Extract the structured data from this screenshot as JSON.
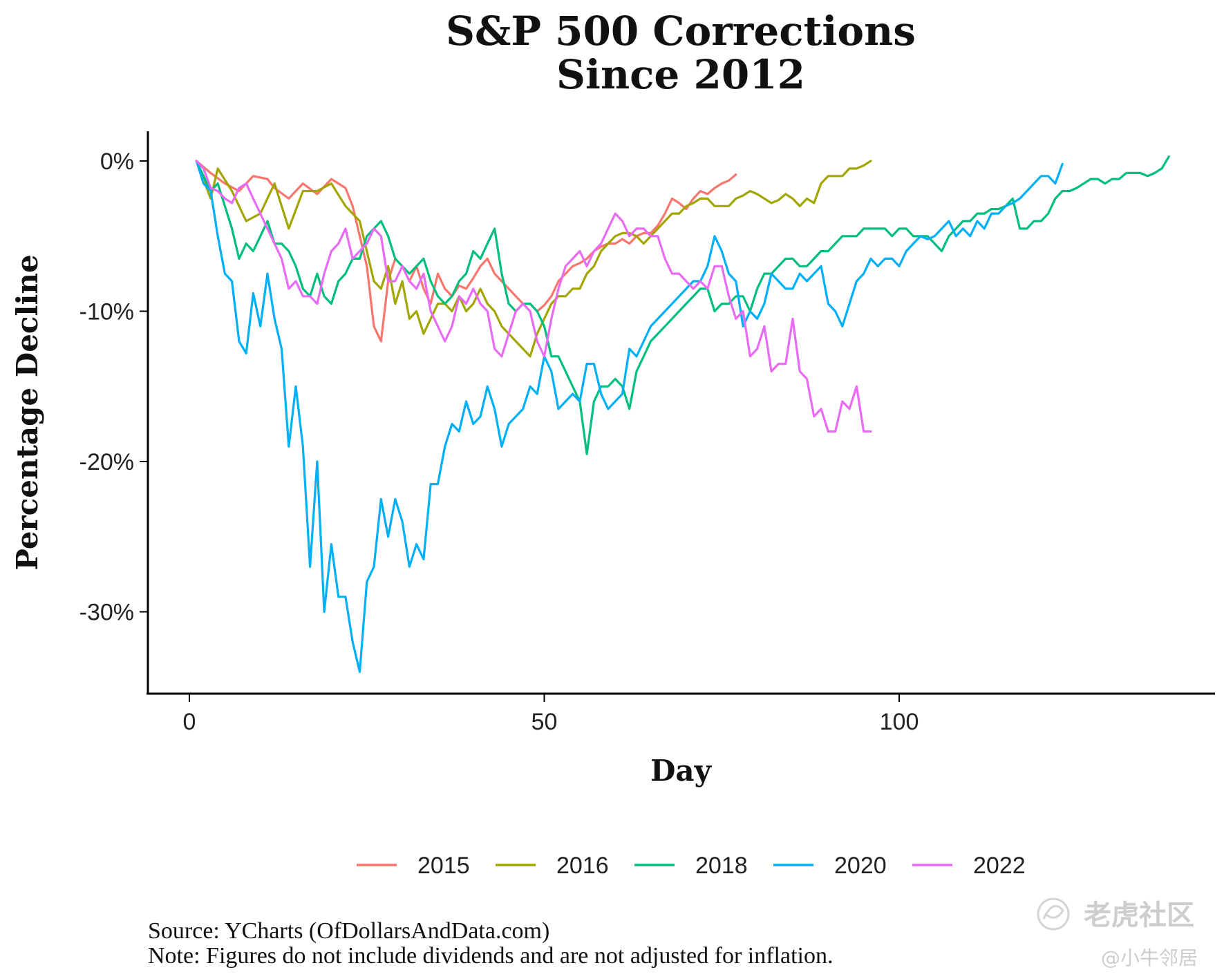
{
  "chart_data": {
    "type": "line",
    "title_lines": [
      "S&P 500 Corrections",
      "Since 2012"
    ],
    "xlabel": "Day",
    "ylabel": "Percentage Decline",
    "xlim": [
      -6,
      145
    ],
    "ylim": [
      -35,
      2
    ],
    "x_ticks": [
      0,
      50,
      100
    ],
    "x_tick_labels": [
      "0",
      "50",
      "100"
    ],
    "y_ticks": [
      0,
      -10,
      -20,
      -30
    ],
    "y_tick_labels": [
      "0%",
      "-10%",
      "-20%",
      "-30%"
    ],
    "legend_position": "bottom",
    "series": [
      {
        "name": "2015",
        "color": "#F8766D",
        "x": [
          1,
          3,
          5,
          7,
          9,
          11,
          12,
          14,
          16,
          18,
          20,
          22,
          23,
          24,
          25,
          26,
          27,
          28,
          29,
          30,
          31,
          32,
          33,
          34,
          35,
          36,
          37,
          38,
          39,
          40,
          41,
          42,
          43,
          44,
          45,
          46,
          47,
          48,
          49,
          50,
          51,
          52,
          53,
          54,
          55,
          56,
          57,
          58,
          59,
          60,
          61,
          62,
          63,
          64,
          65,
          66,
          67,
          68,
          69,
          70,
          71,
          72,
          73,
          74,
          75,
          76,
          77
        ],
        "values": [
          0,
          -0.8,
          -1.5,
          -2,
          -1,
          -1.2,
          -1.8,
          -2.5,
          -1.5,
          -2.2,
          -1.2,
          -1.8,
          -3,
          -5,
          -7,
          -11,
          -12,
          -8,
          -6.5,
          -7,
          -8,
          -7,
          -8.5,
          -9.5,
          -7.5,
          -8.5,
          -9,
          -8.3,
          -8.5,
          -7.8,
          -7,
          -6.5,
          -7.5,
          -8,
          -8.5,
          -9,
          -9.5,
          -9.5,
          -10,
          -9.6,
          -9,
          -8,
          -7.5,
          -7,
          -6.8,
          -6.5,
          -6,
          -5.7,
          -5.5,
          -5.5,
          -5.2,
          -5.5,
          -5,
          -4.8,
          -4.8,
          -4.3,
          -3.5,
          -2.5,
          -2.8,
          -3.2,
          -2.5,
          -2,
          -2.2,
          -1.8,
          -1.5,
          -1.3,
          -0.9
        ]
      },
      {
        "name": "2016",
        "color": "#A3A500",
        "x": [
          1,
          3,
          4,
          6,
          8,
          10,
          12,
          14,
          16,
          18,
          20,
          22,
          24,
          26,
          27,
          28,
          29,
          30,
          31,
          32,
          33,
          34,
          35,
          36,
          37,
          38,
          39,
          40,
          41,
          42,
          43,
          44,
          45,
          46,
          47,
          48,
          49,
          50,
          51,
          52,
          53,
          54,
          55,
          56,
          57,
          58,
          59,
          60,
          61,
          62,
          63,
          64,
          65,
          66,
          67,
          68,
          69,
          70,
          71,
          72,
          73,
          74,
          75,
          76,
          77,
          78,
          79,
          80,
          81,
          82,
          83,
          84,
          85,
          86,
          87,
          88,
          89,
          90,
          91,
          92,
          93,
          94,
          95,
          96
        ],
        "values": [
          0,
          -2.5,
          -0.5,
          -2,
          -4,
          -3.5,
          -1.5,
          -4.5,
          -2,
          -2,
          -1.5,
          -3,
          -4,
          -8,
          -8.5,
          -7,
          -9.5,
          -8,
          -10.5,
          -10,
          -11.5,
          -10.5,
          -9.5,
          -9.5,
          -10,
          -9,
          -10,
          -9.5,
          -8.5,
          -9.5,
          -10,
          -11,
          -11.5,
          -12,
          -12.5,
          -13,
          -11.5,
          -10.5,
          -9.5,
          -9,
          -9,
          -8.5,
          -8.5,
          -7.5,
          -7,
          -6,
          -5.5,
          -5,
          -4.8,
          -4.8,
          -5,
          -5.5,
          -5,
          -4.5,
          -4,
          -3.5,
          -3.5,
          -3,
          -2.8,
          -2.5,
          -2.5,
          -3,
          -3,
          -3,
          -2.5,
          -2.3,
          -2,
          -2.2,
          -2.5,
          -2.8,
          -2.6,
          -2.2,
          -2.5,
          -3,
          -2.5,
          -2.8,
          -1.5,
          -1,
          -1,
          -1,
          -0.5,
          -0.5,
          -0.3,
          0
        ]
      },
      {
        "name": "2018",
        "color": "#00BF7D",
        "x": [
          1,
          2,
          3,
          4,
          5,
          6,
          7,
          8,
          9,
          10,
          11,
          12,
          13,
          14,
          15,
          16,
          17,
          18,
          19,
          20,
          21,
          22,
          23,
          24,
          25,
          26,
          27,
          28,
          29,
          30,
          31,
          32,
          33,
          34,
          35,
          36,
          37,
          38,
          39,
          40,
          41,
          42,
          43,
          44,
          45,
          46,
          47,
          48,
          49,
          50,
          51,
          52,
          53,
          54,
          55,
          56,
          57,
          58,
          59,
          60,
          61,
          62,
          63,
          64,
          65,
          66,
          67,
          68,
          69,
          70,
          71,
          72,
          73,
          74,
          75,
          76,
          77,
          78,
          79,
          80,
          81,
          82,
          83,
          84,
          85,
          86,
          87,
          88,
          89,
          90,
          91,
          92,
          93,
          94,
          95,
          96,
          97,
          98,
          99,
          100,
          101,
          102,
          103,
          104,
          105,
          106,
          107,
          108,
          109,
          110,
          111,
          112,
          113,
          114,
          115,
          116,
          117,
          118,
          119,
          120,
          121,
          122,
          123,
          124,
          125,
          126,
          127,
          128,
          129,
          130,
          131,
          132,
          133,
          134,
          135,
          136,
          137,
          138
        ],
        "values": [
          0,
          -1,
          -2,
          -1.5,
          -3,
          -4.5,
          -6.5,
          -5.5,
          -6,
          -5,
          -4,
          -5.5,
          -5.5,
          -6,
          -7,
          -8.5,
          -9,
          -7.5,
          -9,
          -9.5,
          -8,
          -7.5,
          -6.5,
          -6.5,
          -5,
          -4.5,
          -4,
          -5,
          -6.5,
          -7,
          -7.5,
          -7,
          -6.5,
          -8,
          -9,
          -9.5,
          -9,
          -8,
          -7.5,
          -6,
          -6.5,
          -5.5,
          -4.5,
          -7.5,
          -9.5,
          -10,
          -9.5,
          -9.5,
          -10,
          -11,
          -13,
          -13,
          -14,
          -15,
          -16,
          -19.5,
          -16,
          -15,
          -15,
          -14.5,
          -15,
          -16.5,
          -14,
          -13,
          -12,
          -11.5,
          -11,
          -10.5,
          -10,
          -9.5,
          -9,
          -8.5,
          -8.5,
          -10,
          -9.5,
          -9.5,
          -9,
          -9,
          -10,
          -8.5,
          -7.5,
          -7.5,
          -7,
          -6.5,
          -6.5,
          -7,
          -7,
          -6.5,
          -6,
          -6,
          -5.5,
          -5,
          -5,
          -5,
          -4.5,
          -4.5,
          -4.5,
          -4.5,
          -5,
          -4.5,
          -4.5,
          -5,
          -5,
          -5,
          -5.5,
          -6,
          -5,
          -4.5,
          -4,
          -4,
          -3.5,
          -3.5,
          -3.2,
          -3.2,
          -3,
          -2.5,
          -4.5,
          -4.5,
          -4,
          -4,
          -3.5,
          -2.5,
          -2,
          -2,
          -1.8,
          -1.5,
          -1.2,
          -1.2,
          -1.5,
          -1.2,
          -1.2,
          -0.8,
          -0.8,
          -0.8,
          -1,
          -0.8,
          -0.5,
          0.3
        ]
      },
      {
        "name": "2020",
        "color": "#00B0F6",
        "x": [
          1,
          2,
          3,
          4,
          5,
          6,
          7,
          8,
          9,
          10,
          11,
          12,
          13,
          14,
          15,
          16,
          17,
          18,
          19,
          20,
          21,
          22,
          23,
          24,
          25,
          26,
          27,
          28,
          29,
          30,
          31,
          32,
          33,
          34,
          35,
          36,
          37,
          38,
          39,
          40,
          41,
          42,
          43,
          44,
          45,
          46,
          47,
          48,
          49,
          50,
          51,
          52,
          53,
          54,
          55,
          56,
          57,
          58,
          59,
          60,
          61,
          62,
          63,
          64,
          65,
          66,
          67,
          68,
          69,
          70,
          71,
          72,
          73,
          74,
          75,
          76,
          77,
          78,
          79,
          80,
          81,
          82,
          83,
          84,
          85,
          86,
          87,
          88,
          89,
          90,
          91,
          92,
          93,
          94,
          95,
          96,
          97,
          98,
          99,
          100,
          101,
          102,
          103,
          104,
          105,
          106,
          107,
          108,
          109,
          110,
          111,
          112,
          113,
          114,
          115,
          116,
          117,
          118,
          119,
          120,
          121,
          122,
          123
        ],
        "values": [
          0,
          -1.5,
          -2,
          -5,
          -7.5,
          -8,
          -12,
          -12.8,
          -8.8,
          -11,
          -7.5,
          -10.5,
          -12.5,
          -19,
          -15,
          -19,
          -27,
          -20,
          -30,
          -25.5,
          -29,
          -29,
          -32,
          -34,
          -28,
          -27,
          -22.5,
          -25,
          -22.5,
          -24,
          -27,
          -25.5,
          -26.5,
          -21.5,
          -21.5,
          -19,
          -17.5,
          -18,
          -16,
          -17.5,
          -17,
          -15,
          -16.5,
          -19,
          -17.5,
          -17,
          -16.5,
          -15,
          -15.5,
          -13,
          -14,
          -16.5,
          -16,
          -15.5,
          -16,
          -13.5,
          -13.5,
          -15.5,
          -16.5,
          -16,
          -15.5,
          -12.5,
          -13,
          -12,
          -11,
          -10.5,
          -10,
          -9.5,
          -9,
          -8.5,
          -8,
          -8,
          -7,
          -5,
          -6,
          -7.5,
          -8,
          -11,
          -10,
          -10.5,
          -9.5,
          -7.5,
          -8,
          -8.5,
          -8.5,
          -7.5,
          -8,
          -7.5,
          -7,
          -9.5,
          -10,
          -11,
          -9.5,
          -8,
          -7.5,
          -6.5,
          -7,
          -6.5,
          -6.5,
          -7,
          -6,
          -5.5,
          -5,
          -5.2,
          -5,
          -4.5,
          -4,
          -5,
          -4.5,
          -5,
          -4,
          -4.5,
          -3.5,
          -3.5,
          -3,
          -2.8,
          -2.5,
          -2,
          -1.5,
          -1,
          -1,
          -1.5,
          -0.2
        ]
      },
      {
        "name": "2022",
        "color": "#E76BF3",
        "x": [
          1,
          2,
          3,
          4,
          5,
          6,
          7,
          8,
          9,
          10,
          11,
          12,
          13,
          14,
          15,
          16,
          17,
          18,
          19,
          20,
          21,
          22,
          23,
          24,
          25,
          26,
          27,
          28,
          29,
          30,
          31,
          32,
          33,
          34,
          35,
          36,
          37,
          38,
          39,
          40,
          41,
          42,
          43,
          44,
          45,
          46,
          47,
          48,
          49,
          50,
          51,
          52,
          53,
          54,
          55,
          56,
          57,
          58,
          59,
          60,
          61,
          62,
          63,
          64,
          65,
          66,
          67,
          68,
          69,
          70,
          71,
          72,
          73,
          74,
          75,
          76,
          77,
          78,
          79,
          80,
          81,
          82,
          83,
          84,
          85,
          86,
          87,
          88,
          89,
          90,
          91,
          92,
          93,
          94,
          95,
          96
        ],
        "values": [
          0,
          -0.5,
          -1.8,
          -2,
          -2.5,
          -2.8,
          -1.8,
          -1.5,
          -2.5,
          -3.5,
          -4.5,
          -5.5,
          -6.5,
          -8.5,
          -8,
          -9,
          -9,
          -9.5,
          -7.5,
          -6,
          -5.5,
          -4.5,
          -6.5,
          -6,
          -5.5,
          -4.5,
          -5,
          -8,
          -8,
          -7,
          -8,
          -8.5,
          -7.5,
          -10,
          -11,
          -12,
          -11,
          -9,
          -9.5,
          -8.5,
          -9.5,
          -10,
          -12.5,
          -13,
          -11.5,
          -10,
          -9.5,
          -10,
          -12,
          -13,
          -10.5,
          -8.5,
          -7,
          -6.5,
          -6,
          -7,
          -6,
          -5.5,
          -4.5,
          -3.5,
          -4,
          -5,
          -4.5,
          -4.5,
          -5,
          -5,
          -6.5,
          -7.5,
          -7.5,
          -8,
          -8.5,
          -8,
          -8.5,
          -7,
          -7,
          -9,
          -10.5,
          -10,
          -13,
          -12.5,
          -11,
          -14,
          -13.5,
          -13.5,
          -10.5,
          -14,
          -14.5,
          -17,
          -16.5,
          -18,
          -18,
          -16,
          -16.5,
          -15,
          -18,
          -18
        ]
      }
    ],
    "source_note": "Source: YCharts (OfDollarsAndData.com)",
    "note": "Note: Figures do not include dividends and are not adjusted for inflation."
  },
  "watermark": {
    "brand": "老虎社区",
    "user": "@小牛邻居"
  }
}
